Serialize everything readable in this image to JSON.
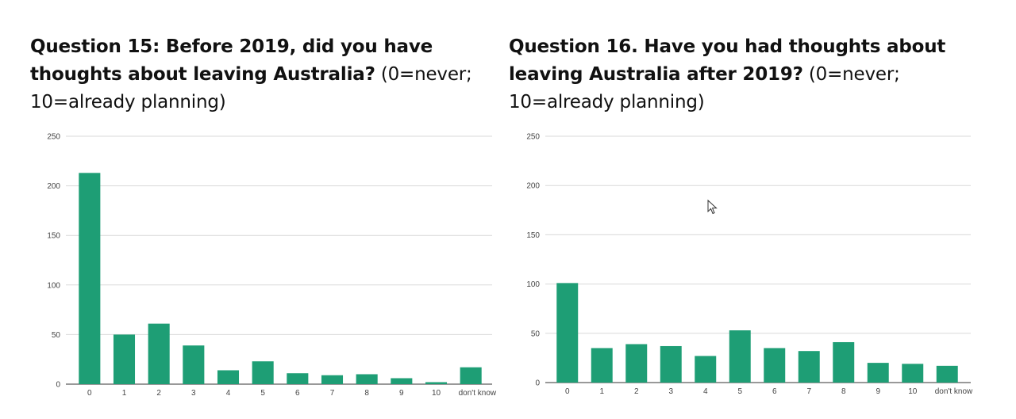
{
  "colors": {
    "bar": "#1e9e75",
    "grid": "#d9d9d9",
    "text": "#111111"
  },
  "chart_data": [
    {
      "type": "bar",
      "title_bold": "Question 15: Before 2019, did you have thoughts about leaving Australia?",
      "title_normal": " (0=never; 10=already planning)",
      "xlabel": "",
      "ylabel": "",
      "ylim": [
        0,
        250
      ],
      "yticks": [
        0,
        50,
        100,
        150,
        200,
        250
      ],
      "grid": true,
      "legend": "none",
      "categories": [
        "0",
        "1",
        "2",
        "3",
        "4",
        "5",
        "6",
        "7",
        "8",
        "9",
        "10",
        "don't know"
      ],
      "values": [
        213,
        50,
        61,
        39,
        14,
        23,
        11,
        9,
        10,
        6,
        2,
        17
      ]
    },
    {
      "type": "bar",
      "title_bold": "Question 16. Have you had thoughts about leaving Australia after 2019?",
      "title_normal": " (0=never; 10=already planning)",
      "xlabel": "",
      "ylabel": "",
      "ylim": [
        0,
        250
      ],
      "yticks": [
        0,
        50,
        100,
        150,
        200,
        250
      ],
      "grid": true,
      "legend": "none",
      "categories": [
        "0",
        "1",
        "2",
        "3",
        "4",
        "5",
        "6",
        "7",
        "8",
        "9",
        "10",
        "don't know"
      ],
      "values": [
        101,
        35,
        39,
        37,
        27,
        53,
        35,
        32,
        41,
        20,
        19,
        17
      ]
    }
  ]
}
